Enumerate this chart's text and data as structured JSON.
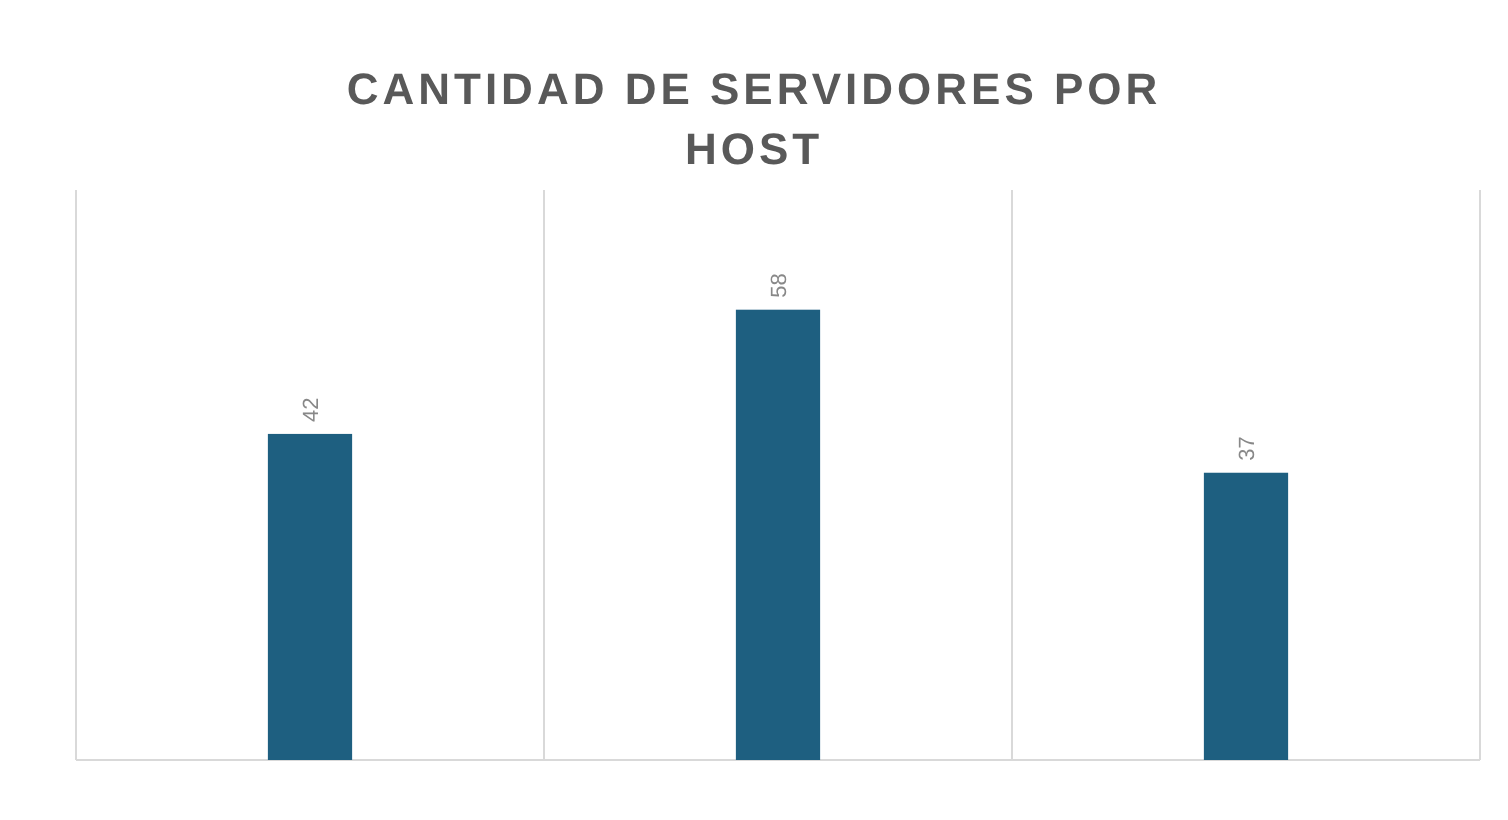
{
  "chart_data": {
    "type": "bar",
    "title": "CANTIDAD DE SERVIDORES POR HOST",
    "categories": [
      null,
      null,
      null
    ],
    "values": [
      42,
      58,
      37
    ],
    "color": "#1e5f80",
    "data_labels": true,
    "grid": "x"
  }
}
